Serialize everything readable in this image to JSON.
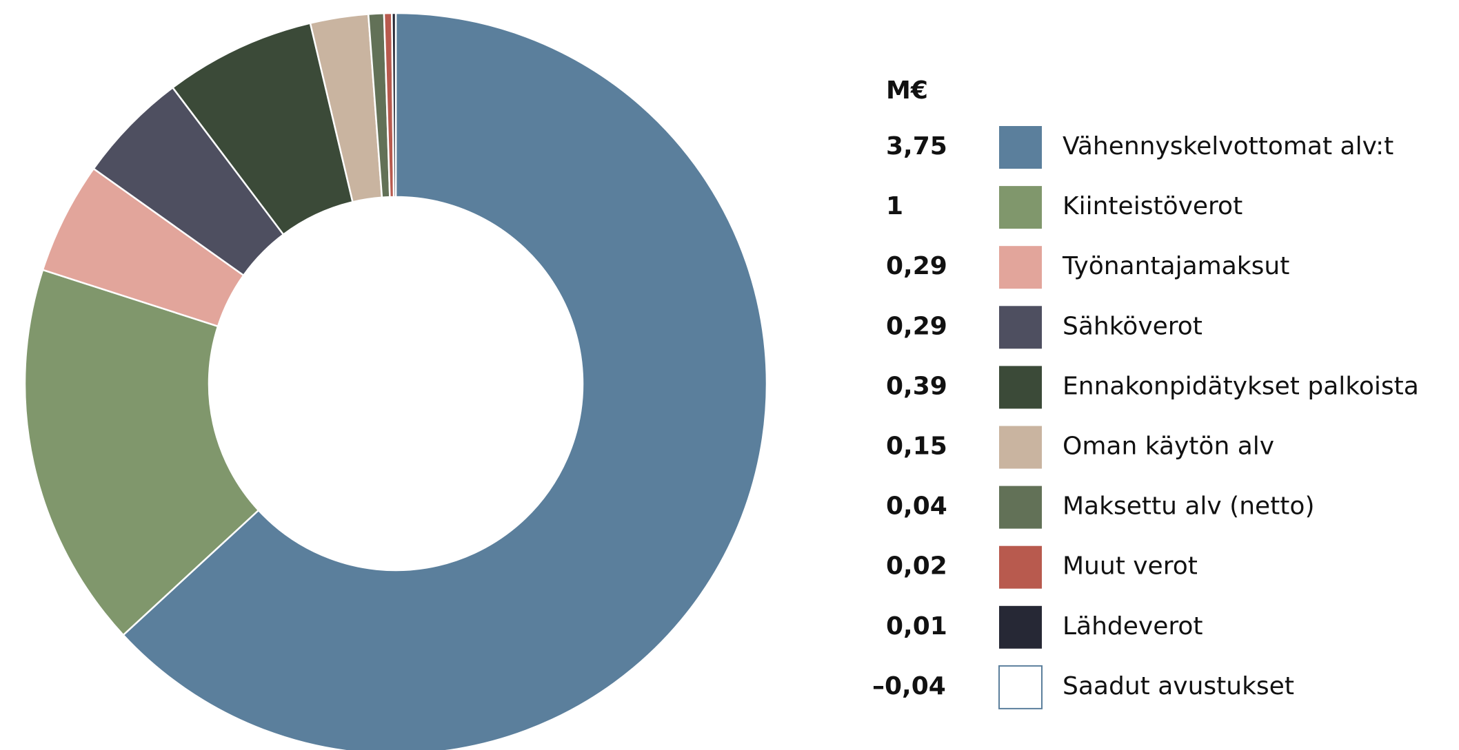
{
  "chart_data": {
    "type": "donut",
    "legend_title": "M€",
    "categories": [
      "Vähennyskelvottomat alv:t",
      "Kiinteistöverot",
      "Työnantajamaksut",
      "Sähköverot",
      "Ennakonpidätykset palkoista",
      "Oman käytön alv",
      "Maksettu alv (netto)",
      "Muut verot",
      "Lähdeverot",
      "Saadut avustukset"
    ],
    "values": [
      3.75,
      1,
      0.29,
      0.29,
      0.39,
      0.15,
      0.04,
      0.02,
      0.01,
      -0.04
    ],
    "value_labels": [
      "3,75",
      "1",
      "0,29",
      "0,29",
      "0,39",
      "0,15",
      "0,04",
      "0,02",
      "0,01",
      "–0,04"
    ],
    "colors": [
      "#5b7f9c",
      "#80976c",
      "#e2a59b",
      "#4e4f60",
      "#3b4a38",
      "#c9b4a0",
      "#627157",
      "#b85a4e",
      "#262835",
      "#ffffff"
    ]
  }
}
